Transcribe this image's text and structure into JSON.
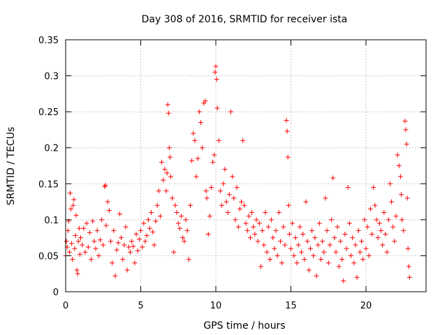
{
  "chart_data": {
    "type": "scatter",
    "title": "Day 308 of 2016, SRMTID for receiver ista",
    "xlabel": "GPS time / hours",
    "ylabel": "SRMTID / TECUs",
    "xlim": [
      0,
      24
    ],
    "ylim": [
      0,
      0.35
    ],
    "x_ticks": [
      0,
      5,
      10,
      15,
      20
    ],
    "x_tick_labels": [
      "0",
      "5",
      "10",
      "15",
      "20"
    ],
    "y_ticks": [
      0,
      0.05,
      0.1,
      0.15,
      0.2,
      0.25,
      0.3,
      0.35
    ],
    "y_tick_labels": [
      "0",
      "0.05",
      "0.1",
      "0.15",
      "0.2",
      "0.25",
      "0.3",
      "0.35"
    ],
    "grid": true,
    "marker": "plus",
    "marker_color": "#ff0000",
    "series": [
      {
        "values_xy": [
          [
            0.0,
            0.05
          ],
          [
            0.05,
            0.07
          ],
          [
            0.1,
            0.062
          ],
          [
            0.15,
            0.085
          ],
          [
            0.2,
            0.098
          ],
          [
            0.25,
            0.055
          ],
          [
            0.3,
            0.137
          ],
          [
            0.35,
            0.115
          ],
          [
            0.4,
            0.067
          ],
          [
            0.45,
            0.045
          ],
          [
            0.5,
            0.12
          ],
          [
            0.55,
            0.128
          ],
          [
            0.6,
            0.06
          ],
          [
            0.65,
            0.078
          ],
          [
            0.7,
            0.106
          ],
          [
            0.75,
            0.03
          ],
          [
            0.8,
            0.025
          ],
          [
            0.85,
            0.07
          ],
          [
            0.9,
            0.088
          ],
          [
            0.95,
            0.052
          ],
          [
            1.0,
            0.075
          ],
          [
            1.1,
            0.065
          ],
          [
            1.2,
            0.088
          ],
          [
            1.3,
            0.055
          ],
          [
            1.4,
            0.095
          ],
          [
            1.5,
            0.062
          ],
          [
            1.6,
            0.082
          ],
          [
            1.7,
            0.045
          ],
          [
            1.8,
            0.098
          ],
          [
            1.9,
            0.07
          ],
          [
            2.0,
            0.06
          ],
          [
            2.1,
            0.085
          ],
          [
            2.2,
            0.05
          ],
          [
            2.3,
            0.072
          ],
          [
            2.4,
            0.1
          ],
          [
            2.5,
            0.065
          ],
          [
            2.6,
            0.146
          ],
          [
            2.65,
            0.148
          ],
          [
            2.7,
            0.092
          ],
          [
            2.8,
            0.125
          ],
          [
            2.9,
            0.113
          ],
          [
            3.0,
            0.07
          ],
          [
            3.1,
            0.04
          ],
          [
            3.2,
            0.085
          ],
          [
            3.3,
            0.022
          ],
          [
            3.4,
            0.058
          ],
          [
            3.5,
            0.068
          ],
          [
            3.6,
            0.108
          ],
          [
            3.7,
            0.075
          ],
          [
            3.8,
            0.045
          ],
          [
            3.9,
            0.065
          ],
          [
            4.0,
            0.09
          ],
          [
            4.1,
            0.03
          ],
          [
            4.2,
            0.062
          ],
          [
            4.3,
            0.055
          ],
          [
            4.4,
            0.07
          ],
          [
            4.5,
            0.063
          ],
          [
            4.6,
            0.04
          ],
          [
            4.7,
            0.08
          ],
          [
            4.8,
            0.057
          ],
          [
            4.9,
            0.073
          ],
          [
            5.0,
            0.085
          ],
          [
            5.1,
            0.062
          ],
          [
            5.2,
            0.095
          ],
          [
            5.3,
            0.07
          ],
          [
            5.4,
            0.078
          ],
          [
            5.5,
            0.1
          ],
          [
            5.6,
            0.088
          ],
          [
            5.7,
            0.11
          ],
          [
            5.8,
            0.083
          ],
          [
            5.9,
            0.065
          ],
          [
            6.0,
            0.098
          ],
          [
            6.1,
            0.12
          ],
          [
            6.2,
            0.14
          ],
          [
            6.3,
            0.105
          ],
          [
            6.4,
            0.18
          ],
          [
            6.5,
            0.155
          ],
          [
            6.6,
            0.17
          ],
          [
            6.7,
            0.14
          ],
          [
            6.75,
            0.165
          ],
          [
            6.8,
            0.26
          ],
          [
            6.85,
            0.248
          ],
          [
            6.9,
            0.2
          ],
          [
            6.95,
            0.187
          ],
          [
            7.0,
            0.16
          ],
          [
            7.1,
            0.13
          ],
          [
            7.2,
            0.055
          ],
          [
            7.3,
            0.12
          ],
          [
            7.4,
            0.11
          ],
          [
            7.5,
            0.095
          ],
          [
            7.6,
            0.088
          ],
          [
            7.7,
            0.105
          ],
          [
            7.8,
            0.075
          ],
          [
            7.9,
            0.07
          ],
          [
            8.0,
            0.1
          ],
          [
            8.1,
            0.085
          ],
          [
            8.2,
            0.045
          ],
          [
            8.3,
            0.12
          ],
          [
            8.4,
            0.182
          ],
          [
            8.5,
            0.22
          ],
          [
            8.6,
            0.21
          ],
          [
            8.7,
            0.16
          ],
          [
            8.8,
            0.185
          ],
          [
            8.9,
            0.25
          ],
          [
            9.0,
            0.235
          ],
          [
            9.1,
            0.2
          ],
          [
            9.2,
            0.262
          ],
          [
            9.3,
            0.265
          ],
          [
            9.35,
            0.14
          ],
          [
            9.4,
            0.13
          ],
          [
            9.5,
            0.08
          ],
          [
            9.6,
            0.105
          ],
          [
            9.7,
            0.145
          ],
          [
            9.8,
            0.18
          ],
          [
            9.9,
            0.19
          ],
          [
            9.95,
            0.305
          ],
          [
            10.0,
            0.313
          ],
          [
            10.05,
            0.295
          ],
          [
            10.1,
            0.255
          ],
          [
            10.2,
            0.21
          ],
          [
            10.3,
            0.14
          ],
          [
            10.4,
            0.12
          ],
          [
            10.5,
            0.15
          ],
          [
            10.6,
            0.17
          ],
          [
            10.7,
            0.125
          ],
          [
            10.8,
            0.11
          ],
          [
            10.9,
            0.135
          ],
          [
            11.0,
            0.25
          ],
          [
            11.1,
            0.16
          ],
          [
            11.2,
            0.13
          ],
          [
            11.3,
            0.1
          ],
          [
            11.4,
            0.145
          ],
          [
            11.5,
            0.09
          ],
          [
            11.6,
            0.115
          ],
          [
            11.7,
            0.125
          ],
          [
            11.8,
            0.21
          ],
          [
            11.9,
            0.12
          ],
          [
            12.0,
            0.095
          ],
          [
            12.1,
            0.085
          ],
          [
            12.2,
            0.105
          ],
          [
            12.3,
            0.075
          ],
          [
            12.4,
            0.11
          ],
          [
            12.5,
            0.09
          ],
          [
            12.6,
            0.08
          ],
          [
            12.7,
            0.1
          ],
          [
            12.8,
            0.07
          ],
          [
            12.9,
            0.095
          ],
          [
            13.0,
            0.035
          ],
          [
            13.1,
            0.085
          ],
          [
            13.2,
            0.065
          ],
          [
            13.3,
            0.11
          ],
          [
            13.4,
            0.055
          ],
          [
            13.5,
            0.09
          ],
          [
            13.6,
            0.045
          ],
          [
            13.7,
            0.1
          ],
          [
            13.8,
            0.075
          ],
          [
            13.9,
            0.06
          ],
          [
            14.0,
            0.085
          ],
          [
            14.1,
            0.05
          ],
          [
            14.2,
            0.11
          ],
          [
            14.3,
            0.07
          ],
          [
            14.4,
            0.04
          ],
          [
            14.5,
            0.09
          ],
          [
            14.6,
            0.065
          ],
          [
            14.7,
            0.238
          ],
          [
            14.75,
            0.223
          ],
          [
            14.8,
            0.187
          ],
          [
            14.85,
            0.12
          ],
          [
            14.9,
            0.08
          ],
          [
            15.0,
            0.06
          ],
          [
            15.1,
            0.095
          ],
          [
            15.2,
            0.05
          ],
          [
            15.3,
            0.075
          ],
          [
            15.4,
            0.04
          ],
          [
            15.5,
            0.065
          ],
          [
            15.6,
            0.09
          ],
          [
            15.7,
            0.055
          ],
          [
            15.8,
            0.08
          ],
          [
            15.9,
            0.045
          ],
          [
            16.0,
            0.125
          ],
          [
            16.1,
            0.07
          ],
          [
            16.2,
            0.03
          ],
          [
            16.3,
            0.06
          ],
          [
            16.4,
            0.085
          ],
          [
            16.5,
            0.05
          ],
          [
            16.6,
            0.075
          ],
          [
            16.7,
            0.022
          ],
          [
            16.8,
            0.065
          ],
          [
            16.9,
            0.095
          ],
          [
            17.0,
            0.045
          ],
          [
            17.1,
            0.07
          ],
          [
            17.2,
            0.055
          ],
          [
            17.3,
            0.13
          ],
          [
            17.4,
            0.085
          ],
          [
            17.5,
            0.04
          ],
          [
            17.6,
            0.065
          ],
          [
            17.7,
            0.1
          ],
          [
            17.8,
            0.158
          ],
          [
            17.9,
            0.075
          ],
          [
            18.0,
            0.055
          ],
          [
            18.1,
            0.09
          ],
          [
            18.2,
            0.035
          ],
          [
            18.3,
            0.07
          ],
          [
            18.4,
            0.045
          ],
          [
            18.5,
            0.015
          ],
          [
            18.6,
            0.08
          ],
          [
            18.7,
            0.06
          ],
          [
            18.8,
            0.145
          ],
          [
            18.9,
            0.095
          ],
          [
            19.0,
            0.05
          ],
          [
            19.1,
            0.075
          ],
          [
            19.2,
            0.04
          ],
          [
            19.3,
            0.065
          ],
          [
            19.4,
            0.02
          ],
          [
            19.5,
            0.085
          ],
          [
            19.6,
            0.055
          ],
          [
            19.7,
            0.07
          ],
          [
            19.8,
            0.045
          ],
          [
            19.9,
            0.1
          ],
          [
            20.0,
            0.06
          ],
          [
            20.1,
            0.09
          ],
          [
            20.2,
            0.05
          ],
          [
            20.3,
            0.115
          ],
          [
            20.4,
            0.08
          ],
          [
            20.5,
            0.145
          ],
          [
            20.6,
            0.12
          ],
          [
            20.7,
            0.1
          ],
          [
            20.8,
            0.075
          ],
          [
            20.9,
            0.095
          ],
          [
            21.0,
            0.085
          ],
          [
            21.1,
            0.065
          ],
          [
            21.2,
            0.11
          ],
          [
            21.3,
            0.08
          ],
          [
            21.4,
            0.055
          ],
          [
            21.5,
            0.1
          ],
          [
            21.6,
            0.15
          ],
          [
            21.7,
            0.125
          ],
          [
            21.8,
            0.09
          ],
          [
            21.9,
            0.07
          ],
          [
            22.0,
            0.105
          ],
          [
            22.1,
            0.19
          ],
          [
            22.2,
            0.175
          ],
          [
            22.3,
            0.16
          ],
          [
            22.35,
            0.135
          ],
          [
            22.4,
            0.1
          ],
          [
            22.5,
            0.085
          ],
          [
            22.6,
            0.237
          ],
          [
            22.65,
            0.225
          ],
          [
            22.7,
            0.205
          ],
          [
            22.75,
            0.13
          ],
          [
            22.8,
            0.06
          ],
          [
            22.85,
            0.035
          ],
          [
            22.9,
            0.02
          ]
        ]
      }
    ]
  }
}
